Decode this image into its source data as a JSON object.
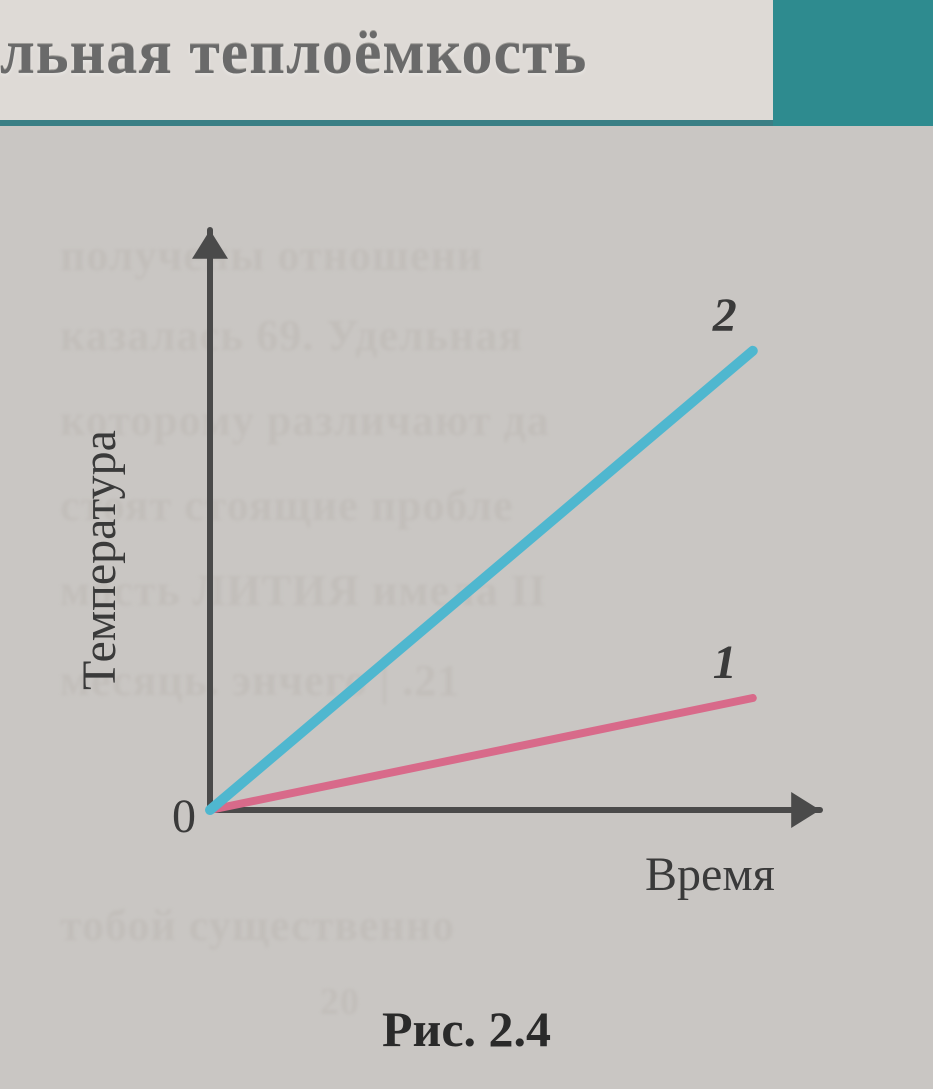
{
  "header": {
    "title_fragment": "льная теплоёмкость",
    "title_color": "#6a6a6a",
    "title_fontsize": 62,
    "underline_color": "#3a7f85",
    "accent_block_color": "#2e8b8f",
    "bar_bg": "#dedad6"
  },
  "page": {
    "background_color": "#c9c6c3"
  },
  "chart": {
    "type": "line",
    "xlabel": "Время",
    "ylabel": "Температура",
    "origin_label": "0",
    "label_color": "#3a3a3a",
    "label_fontsize": 48,
    "axis_color": "#4a4a4a",
    "axis_width": 6,
    "arrow_size": 18,
    "xlim": [
      0,
      10
    ],
    "ylim": [
      0,
      10
    ],
    "series": [
      {
        "name": "1",
        "label": "1",
        "color": "#d86a8a",
        "width": 8,
        "label_style": "italic",
        "points": [
          [
            0,
            0
          ],
          [
            9.2,
            2.0
          ]
        ]
      },
      {
        "name": "2",
        "label": "2",
        "color": "#4fb7cf",
        "width": 10,
        "label_style": "italic",
        "points": [
          [
            0,
            0
          ],
          [
            9.2,
            8.2
          ]
        ]
      }
    ]
  },
  "caption": {
    "text": "Рис. 2.4",
    "fontsize": 50,
    "color": "#2a2a2a"
  },
  "ghost_text": {
    "lines": [
      "получены  отношени",
      "казалась  69.  Удельная",
      "которому  различают  да",
      "стоят  стоящие  пробле",
      "мость  ЛИТИЯ имела II",
      "месяць. энчего   | .21",
      "тобой  существенно",
      "20"
    ],
    "color": "#b6b1ab",
    "fontsize": 44
  }
}
